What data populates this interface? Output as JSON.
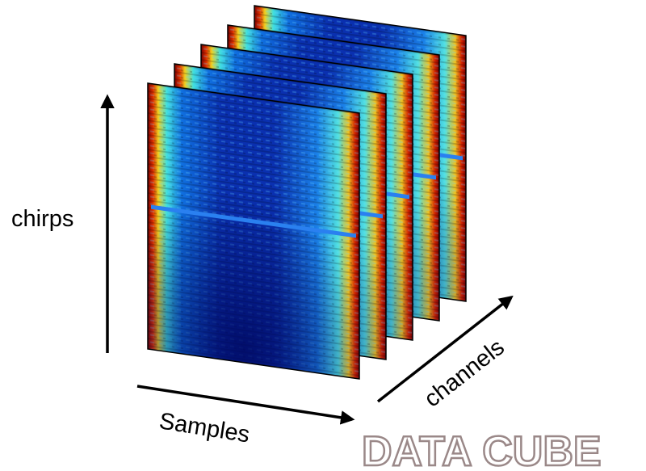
{
  "axes": {
    "vertical": "chirps",
    "horizontal": "Samples",
    "depth": "channels"
  },
  "title": "DATA CUBE"
}
